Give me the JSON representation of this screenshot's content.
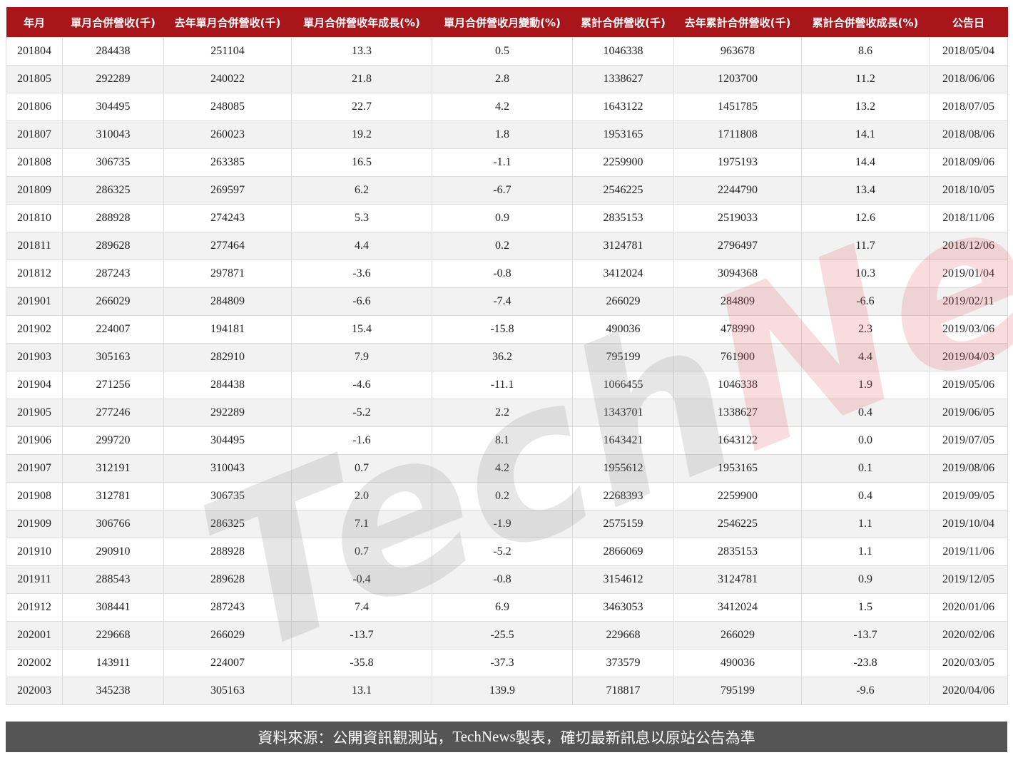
{
  "table": {
    "headers": [
      "年月",
      "單月合併營收(千)",
      "去年單月合併營收(千)",
      "單月合併營收年成長(%)",
      "單月合併營收月變動(%)",
      "累計合併營收(千)",
      "去年累計合併營收(千)",
      "累計合併營收成長(%)",
      "公告日"
    ],
    "rows": [
      [
        "201804",
        "284438",
        "251104",
        "13.3",
        "0.5",
        "1046338",
        "963678",
        "8.6",
        "2018/05/04"
      ],
      [
        "201805",
        "292289",
        "240022",
        "21.8",
        "2.8",
        "1338627",
        "1203700",
        "11.2",
        "2018/06/06"
      ],
      [
        "201806",
        "304495",
        "248085",
        "22.7",
        "4.2",
        "1643122",
        "1451785",
        "13.2",
        "2018/07/05"
      ],
      [
        "201807",
        "310043",
        "260023",
        "19.2",
        "1.8",
        "1953165",
        "1711808",
        "14.1",
        "2018/08/06"
      ],
      [
        "201808",
        "306735",
        "263385",
        "16.5",
        "-1.1",
        "2259900",
        "1975193",
        "14.4",
        "2018/09/06"
      ],
      [
        "201809",
        "286325",
        "269597",
        "6.2",
        "-6.7",
        "2546225",
        "2244790",
        "13.4",
        "2018/10/05"
      ],
      [
        "201810",
        "288928",
        "274243",
        "5.3",
        "0.9",
        "2835153",
        "2519033",
        "12.6",
        "2018/11/06"
      ],
      [
        "201811",
        "289628",
        "277464",
        "4.4",
        "0.2",
        "3124781",
        "2796497",
        "11.7",
        "2018/12/06"
      ],
      [
        "201812",
        "287243",
        "297871",
        "-3.6",
        "-0.8",
        "3412024",
        "3094368",
        "10.3",
        "2019/01/04"
      ],
      [
        "201901",
        "266029",
        "284809",
        "-6.6",
        "-7.4",
        "266029",
        "284809",
        "-6.6",
        "2019/02/11"
      ],
      [
        "201902",
        "224007",
        "194181",
        "15.4",
        "-15.8",
        "490036",
        "478990",
        "2.3",
        "2019/03/06"
      ],
      [
        "201903",
        "305163",
        "282910",
        "7.9",
        "36.2",
        "795199",
        "761900",
        "4.4",
        "2019/04/03"
      ],
      [
        "201904",
        "271256",
        "284438",
        "-4.6",
        "-11.1",
        "1066455",
        "1046338",
        "1.9",
        "2019/05/06"
      ],
      [
        "201905",
        "277246",
        "292289",
        "-5.2",
        "2.2",
        "1343701",
        "1338627",
        "0.4",
        "2019/06/05"
      ],
      [
        "201906",
        "299720",
        "304495",
        "-1.6",
        "8.1",
        "1643421",
        "1643122",
        "0.0",
        "2019/07/05"
      ],
      [
        "201907",
        "312191",
        "310043",
        "0.7",
        "4.2",
        "1955612",
        "1953165",
        "0.1",
        "2019/08/06"
      ],
      [
        "201908",
        "312781",
        "306735",
        "2.0",
        "0.2",
        "2268393",
        "2259900",
        "0.4",
        "2019/09/05"
      ],
      [
        "201909",
        "306766",
        "286325",
        "7.1",
        "-1.9",
        "2575159",
        "2546225",
        "1.1",
        "2019/10/04"
      ],
      [
        "201910",
        "290910",
        "288928",
        "0.7",
        "-5.2",
        "2866069",
        "2835153",
        "1.1",
        "2019/11/06"
      ],
      [
        "201911",
        "288543",
        "289628",
        "-0.4",
        "-0.8",
        "3154612",
        "3124781",
        "0.9",
        "2019/12/05"
      ],
      [
        "201912",
        "308441",
        "287243",
        "7.4",
        "6.9",
        "3463053",
        "3412024",
        "1.5",
        "2020/01/06"
      ],
      [
        "202001",
        "229668",
        "266029",
        "-13.7",
        "-25.5",
        "229668",
        "266029",
        "-13.7",
        "2020/02/06"
      ],
      [
        "202002",
        "143911",
        "224007",
        "-35.8",
        "-37.3",
        "373579",
        "490036",
        "-23.8",
        "2020/03/05"
      ],
      [
        "202003",
        "345238",
        "305163",
        "13.1",
        "139.9",
        "718817",
        "795199",
        "-9.6",
        "2020/04/06"
      ]
    ]
  },
  "footer": {
    "prefix": "資料來源：公開資訊觀測站，",
    "brand": "TechNews",
    "suffix": " 製表，確切最新訊息以原站公告為準"
  },
  "watermark": {
    "text": "TechNews",
    "colors": {
      "tech": "#bbbbbb",
      "news": "#e8a0a4"
    }
  },
  "colors": {
    "header_bg": "#a8151a",
    "footer_bg": "#555555"
  }
}
